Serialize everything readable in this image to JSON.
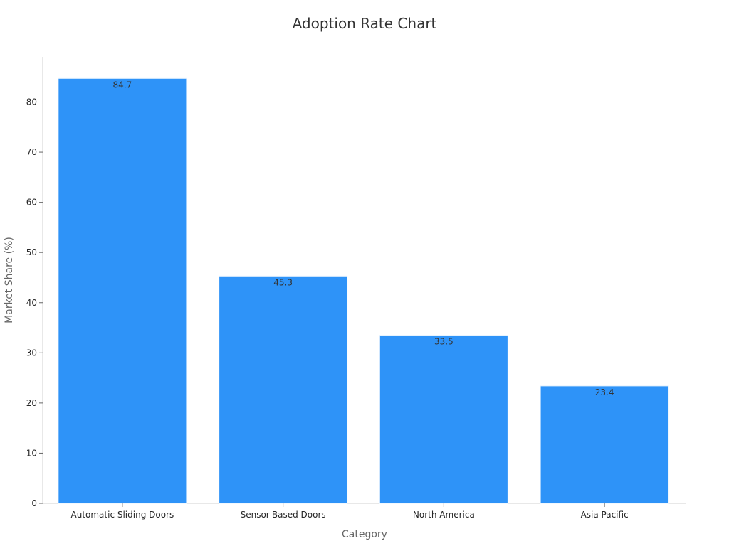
{
  "chart_data": {
    "type": "bar",
    "title": "Adoption Rate Chart",
    "xlabel": "Category",
    "ylabel": "Market Share (%)",
    "categories": [
      "Automatic Sliding Doors",
      "Sensor-Based Doors",
      "North America",
      "Asia Pacific"
    ],
    "values": [
      84.7,
      45.3,
      33.5,
      23.4
    ],
    "ylim": [
      0,
      89
    ],
    "yticks": [
      0,
      10,
      20,
      30,
      40,
      50,
      60,
      70,
      80
    ],
    "bar_color": "#2e93f8",
    "bar_edge_color": "#e6f2fe",
    "grid": false,
    "legend": "none"
  }
}
